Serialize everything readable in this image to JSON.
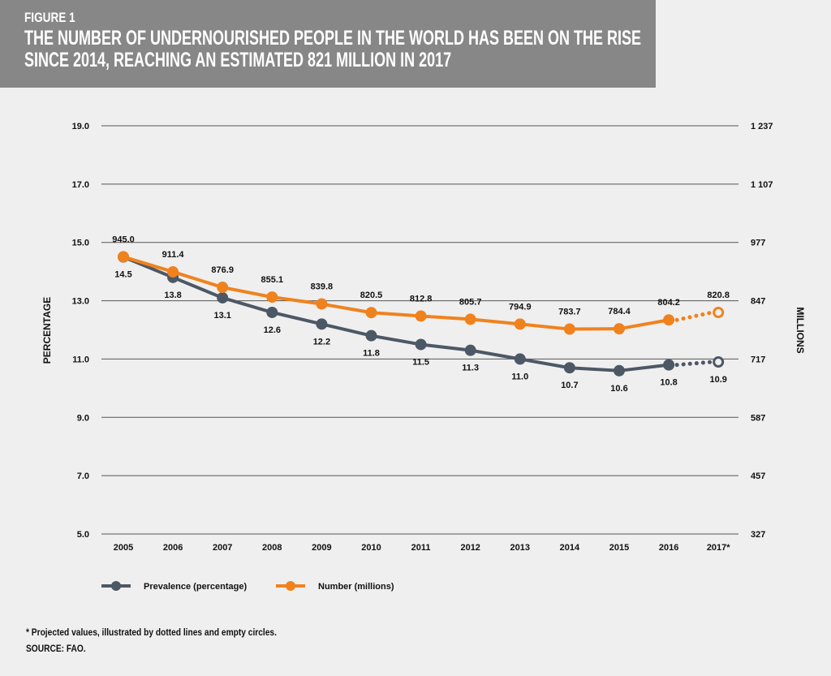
{
  "header": {
    "figure_label": "FIGURE 1",
    "title_line1": "THE NUMBER OF UNDERNOURISHED PEOPLE IN THE WORLD HAS BEEN ON THE RISE",
    "title_line2": "SINCE 2014, REACHING AN ESTIMATED 821 MILLION IN 2017"
  },
  "chart_data": {
    "type": "line",
    "title": "THE NUMBER OF UNDERNOURISHED PEOPLE IN THE WORLD HAS BEEN ON THE RISE SINCE 2014, REACHING AN ESTIMATED 821 MILLION IN 2017",
    "categories": [
      "2005",
      "2006",
      "2007",
      "2008",
      "2009",
      "2010",
      "2011",
      "2012",
      "2013",
      "2014",
      "2015",
      "2016",
      "2017*"
    ],
    "ylabel_left": "PERCENTAGE",
    "ylabel_right": "MILLIONS",
    "ylim_left": [
      5.0,
      19.0
    ],
    "yticks_left": [
      "5.0",
      "7.0",
      "9.0",
      "11.0",
      "13.0",
      "15.0",
      "17.0",
      "19.0"
    ],
    "ylim_right": [
      327,
      1237
    ],
    "yticks_right": [
      "327",
      "457",
      "587",
      "717",
      "847",
      "977",
      "1 107",
      "1 237"
    ],
    "grid": true,
    "legend_position": "bottom-left",
    "projected_index_from": 12,
    "series": [
      {
        "name": "Prevalence (percentage)",
        "axis": "left",
        "color": "#4d5866",
        "values": [
          14.5,
          13.8,
          13.1,
          12.6,
          12.2,
          11.8,
          11.5,
          11.3,
          11.0,
          10.7,
          10.6,
          10.8,
          10.9
        ],
        "labels": [
          "14.5",
          "13.8",
          "13.1",
          "12.6",
          "12.2",
          "11.8",
          "11.5",
          "11.3",
          "11.0",
          "10.7",
          "10.6",
          "10.8",
          "10.9"
        ]
      },
      {
        "name": "Number (millions)",
        "axis": "right",
        "color": "#f0821e",
        "values": [
          945.0,
          911.4,
          876.9,
          855.1,
          839.8,
          820.5,
          812.8,
          805.7,
          794.9,
          783.7,
          784.4,
          804.2,
          820.8
        ],
        "labels": [
          "945.0",
          "911.4",
          "876.9",
          "855.1",
          "839.8",
          "820.5",
          "812.8",
          "805.7",
          "794.9",
          "783.7",
          "784.4",
          "804.2",
          "820.8"
        ]
      }
    ]
  },
  "footnote": "* Projected values, illustrated by dotted lines and empty circles.",
  "source": "SOURCE: FAO."
}
